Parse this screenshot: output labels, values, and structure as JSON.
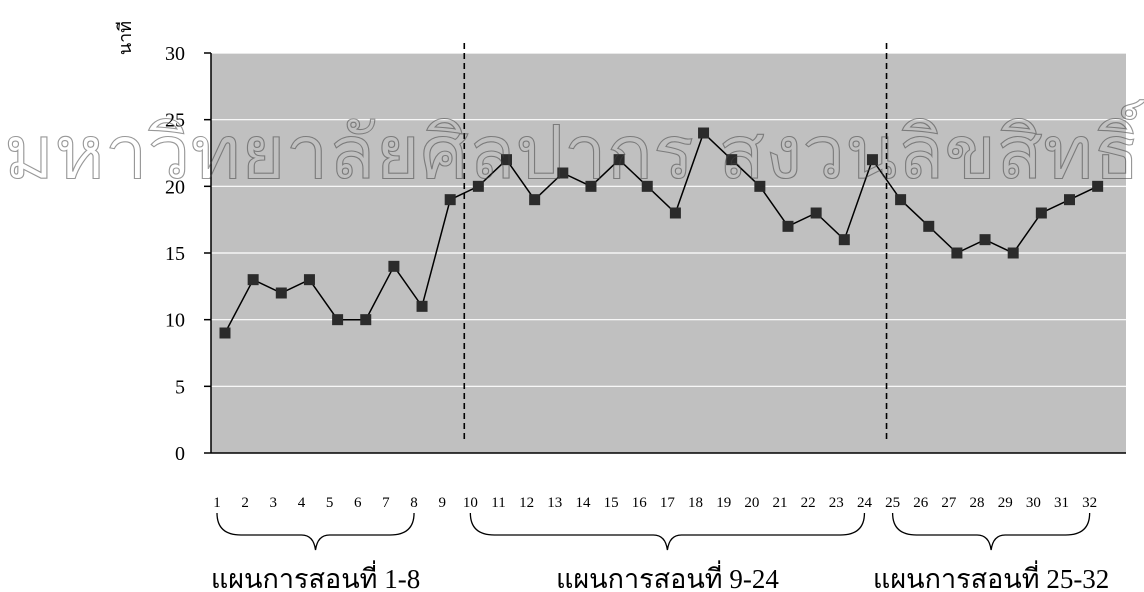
{
  "chart_data": {
    "type": "line",
    "ylabel": "นาที",
    "ylim": [
      0,
      30
    ],
    "yticks": [
      0,
      5,
      10,
      15,
      20,
      25,
      30
    ],
    "grid": true,
    "x": [
      1,
      2,
      3,
      4,
      5,
      6,
      7,
      8,
      9,
      10,
      11,
      12,
      13,
      14,
      15,
      16,
      17,
      18,
      19,
      20,
      21,
      22,
      23,
      24,
      25,
      26,
      27,
      28,
      29,
      30,
      31,
      32
    ],
    "values": [
      9,
      13,
      12,
      13,
      10,
      10,
      14,
      11,
      19,
      20,
      22,
      19,
      21,
      20,
      22,
      20,
      18,
      24,
      22,
      20,
      17,
      18,
      16,
      22,
      19,
      17,
      15,
      16,
      15,
      18,
      19,
      20
    ],
    "phase_lines_after": [
      9,
      24
    ],
    "groups": [
      {
        "label": "แผนการสอนที่ 1-8",
        "from": 1,
        "to": 8
      },
      {
        "label": "แผนการสอนที่ 9-24",
        "from": 10,
        "to": 24
      },
      {
        "label": "แผนการสอนที่ 25-32",
        "from": 25,
        "to": 32
      }
    ],
    "colors": {
      "plot_bg": "#c0c0c0",
      "line": "#000000",
      "marker": "#2b2b2b",
      "grid": "#ffffff"
    }
  },
  "watermark": "มหาวิทยาลัยศิลปากร สงวนลิขสิทธิ์"
}
